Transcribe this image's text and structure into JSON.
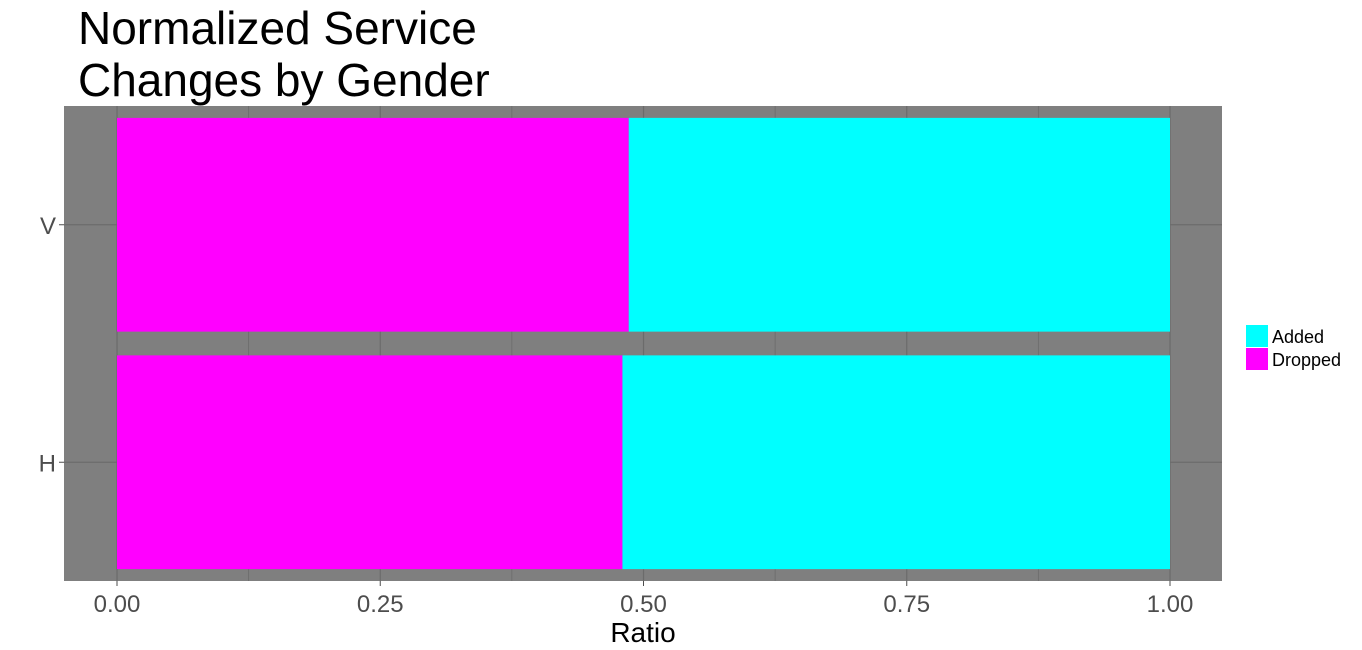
{
  "chart_data": {
    "type": "bar",
    "orientation": "horizontal",
    "stacked": true,
    "title": "Normalized Service\nChanges by Gender",
    "xlabel": "Ratio",
    "ylabel": "",
    "xlim": [
      0,
      1
    ],
    "xticks": [
      "0.00",
      "0.25",
      "0.50",
      "0.75",
      "1.00"
    ],
    "categories": [
      "H",
      "V"
    ],
    "series": [
      {
        "name": "Dropped",
        "values": [
          0.48,
          0.486
        ],
        "color": "#ff00ff"
      },
      {
        "name": "Added",
        "values": [
          0.52,
          0.514
        ],
        "color": "#00ffff"
      }
    ],
    "legend": {
      "placement": "right",
      "entries": [
        "Added",
        "Dropped"
      ]
    },
    "panel_background": "#7f7f7f",
    "grid": true
  }
}
